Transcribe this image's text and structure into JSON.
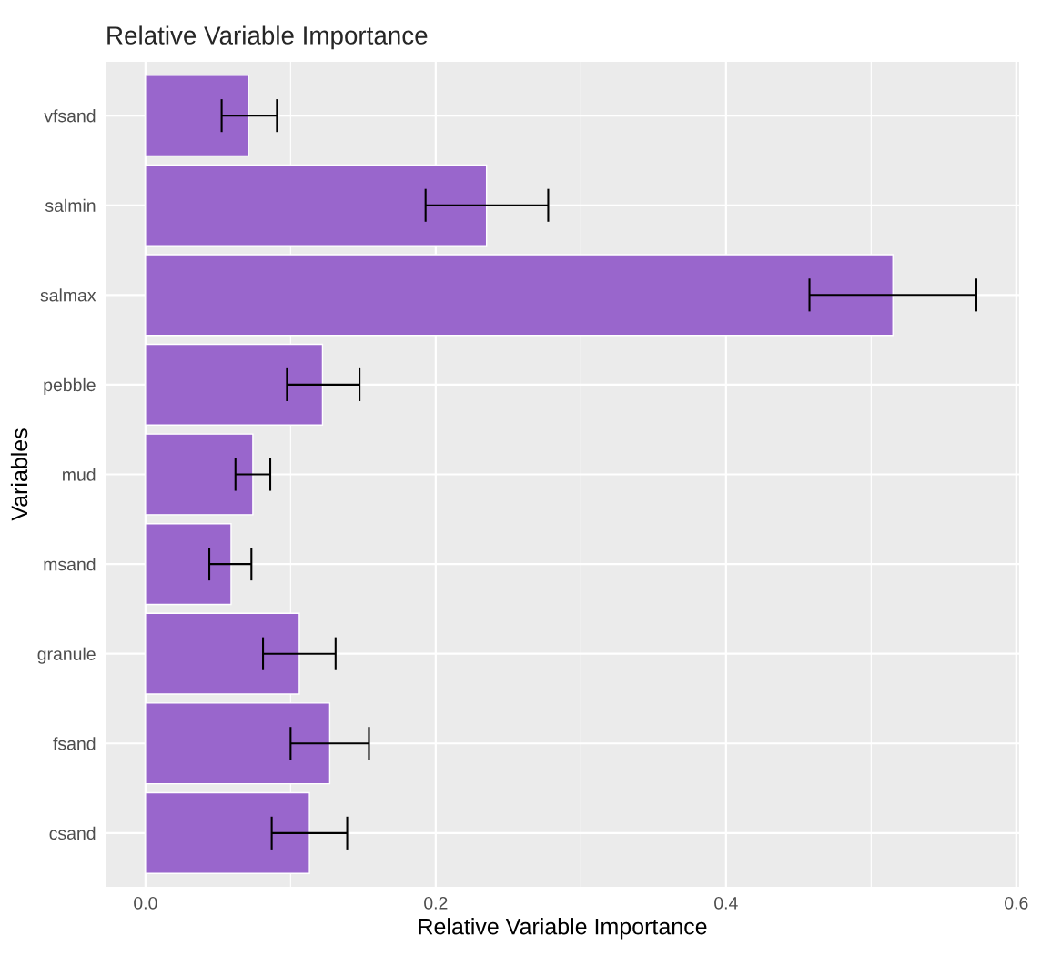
{
  "chart_data": {
    "type": "bar",
    "orientation": "horizontal",
    "title": "Relative Variable Importance",
    "xlabel": "Relative Variable Importance",
    "ylabel": "Variables",
    "categories": [
      "vfsand",
      "salmin",
      "salmax",
      "pebble",
      "mud",
      "msand",
      "granule",
      "fsand",
      "csand"
    ],
    "values": [
      0.071,
      0.235,
      0.515,
      0.122,
      0.074,
      0.059,
      0.106,
      0.127,
      0.113
    ],
    "errors": [
      [
        0.0525,
        0.0906
      ],
      [
        0.193,
        0.2775
      ],
      [
        0.4575,
        0.5725
      ],
      [
        0.0975,
        0.1475
      ],
      [
        0.062,
        0.086
      ],
      [
        0.044,
        0.073
      ],
      [
        0.081,
        0.131
      ],
      [
        0.1,
        0.154
      ],
      [
        0.087,
        0.139
      ]
    ],
    "color": "#9966cc",
    "xlim": [
      -0.0275,
      0.602
    ],
    "xticks": [
      {
        "value": 0.0,
        "label": "0.0"
      },
      {
        "value": 0.2,
        "label": "0.2"
      },
      {
        "value": 0.4,
        "label": "0.4"
      },
      {
        "value": 0.6,
        "label": "0.6"
      }
    ],
    "grid": true,
    "legend": false
  }
}
